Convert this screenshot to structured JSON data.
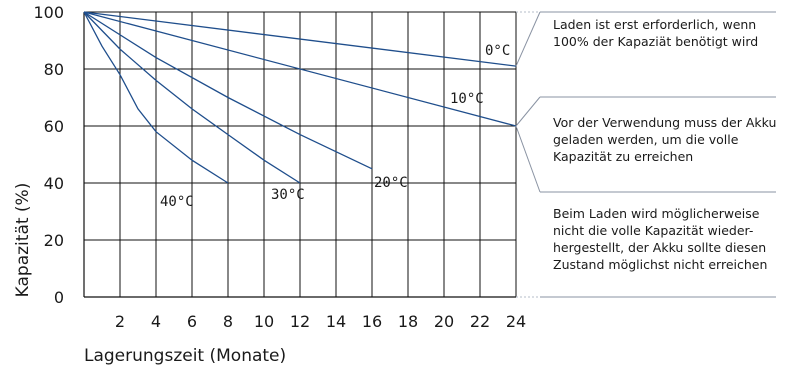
{
  "chart_data": {
    "type": "line",
    "xlabel": "Lagerungszeit (Monate)",
    "ylabel": "Kapazität (%)",
    "xlim": [
      0,
      24
    ],
    "ylim": [
      0,
      100
    ],
    "xticks": [
      2,
      4,
      6,
      8,
      10,
      12,
      14,
      16,
      18,
      20,
      22,
      24
    ],
    "yticks": [
      0,
      20,
      40,
      60,
      80,
      100
    ],
    "grid": true,
    "series": [
      {
        "name": "0°C",
        "x": [
          0,
          24
        ],
        "y": [
          100,
          81
        ]
      },
      {
        "name": "10°C",
        "x": [
          0,
          24
        ],
        "y": [
          100,
          60
        ]
      },
      {
        "name": "20°C",
        "x": [
          0,
          4,
          8,
          12,
          16
        ],
        "y": [
          100,
          84,
          70,
          57,
          45
        ]
      },
      {
        "name": "30°C",
        "x": [
          0,
          2,
          4,
          6,
          8,
          10,
          12
        ],
        "y": [
          100,
          87,
          76,
          66,
          57,
          48,
          40
        ]
      },
      {
        "name": "40°C",
        "x": [
          0,
          1,
          2,
          3,
          4,
          6,
          8
        ],
        "y": [
          100,
          88,
          78,
          66,
          58,
          48,
          40
        ]
      }
    ]
  },
  "notes": [
    {
      "text": "Laden ist erst erforderlich, wenn 100% der Kapaziät benötigt wird"
    },
    {
      "text": "Vor der Verwendung muss der Akku geladen werden, um die volle Kapazität zu erreichen"
    },
    {
      "text": "Beim Laden wird möglicherweise nicht die volle Kapazität wieder-hergestellt, der Akku sollte diesen Zustand möglichst nicht erreichen"
    }
  ]
}
